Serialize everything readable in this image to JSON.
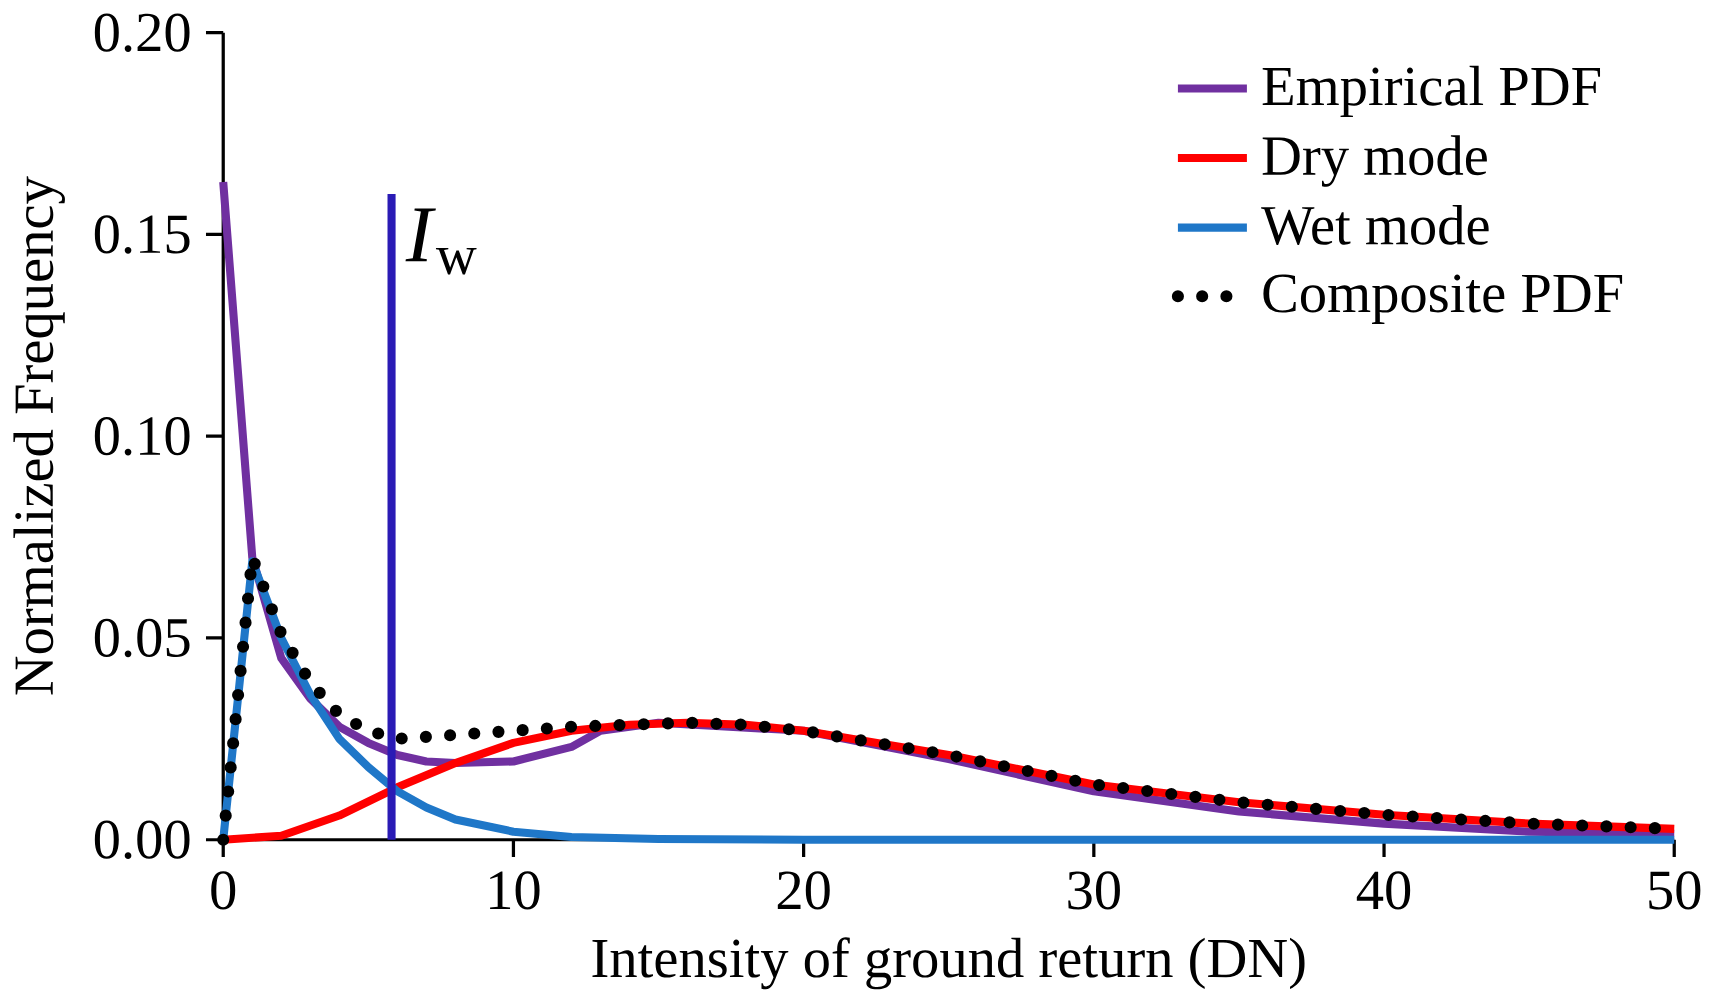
{
  "chart_data": {
    "type": "line",
    "xlabel": "Intensity of ground return (DN)",
    "ylabel": "Normalized Frequency",
    "xlim": [
      0,
      50
    ],
    "ylim": [
      0,
      0.2
    ],
    "xticks": [
      0,
      10,
      20,
      30,
      40,
      50
    ],
    "yticks": [
      {
        "value": 0,
        "label": "0.00"
      },
      {
        "value": 0.05,
        "label": "0.05"
      },
      {
        "value": 0.1,
        "label": "0.10"
      },
      {
        "value": 0.15,
        "label": "0.15"
      },
      {
        "value": 0.2,
        "label": "0.20"
      }
    ],
    "legend": "top right",
    "grid": false,
    "marker": "none",
    "series": [
      {
        "name": "Empirical PDF",
        "color": "#7030a0",
        "x": [
          0,
          1,
          2,
          3,
          4,
          5,
          6,
          7,
          8,
          10,
          12,
          13,
          15,
          20,
          25,
          30,
          35,
          40,
          45,
          50
        ],
        "values": [
          0.163,
          0.07,
          0.045,
          0.035,
          0.028,
          0.024,
          0.021,
          0.0194,
          0.019,
          0.0194,
          0.023,
          0.027,
          0.029,
          0.027,
          0.02,
          0.012,
          0.007,
          0.004,
          0.002,
          0.0015
        ]
      },
      {
        "name": "Dry mode",
        "color": "#ff0000",
        "x": [
          0,
          2,
          4,
          6,
          8,
          10,
          12,
          14,
          16,
          18,
          20,
          25,
          30,
          35,
          40,
          45,
          50
        ],
        "values": [
          0,
          0.001,
          0.006,
          0.013,
          0.019,
          0.024,
          0.027,
          0.0285,
          0.029,
          0.0285,
          0.027,
          0.021,
          0.0137,
          0.0093,
          0.0062,
          0.004,
          0.0027
        ]
      },
      {
        "name": "Wet mode",
        "color": "#1f77c8",
        "x": [
          0,
          1,
          2,
          3,
          4,
          5,
          6,
          7,
          8,
          10,
          12,
          15,
          20,
          50
        ],
        "values": [
          0,
          0.069,
          0.05,
          0.036,
          0.025,
          0.018,
          0.012,
          0.008,
          0.005,
          0.002,
          0.0007,
          0.0002,
          0,
          0
        ]
      },
      {
        "name": "Composite PDF",
        "color": "#000000",
        "line_style": "dotted",
        "x": [
          0,
          1,
          2,
          3,
          4,
          5,
          6,
          7,
          8,
          10,
          12,
          14,
          16,
          18,
          20,
          25,
          30,
          35,
          40,
          45,
          50
        ],
        "values": [
          0,
          0.07,
          0.051,
          0.039,
          0.031,
          0.027,
          0.025,
          0.0255,
          0.026,
          0.027,
          0.028,
          0.0285,
          0.029,
          0.0285,
          0.027,
          0.021,
          0.0137,
          0.0093,
          0.0062,
          0.004,
          0.0027
        ]
      }
    ],
    "ref_lines": [
      {
        "axis": "x",
        "value": 5.8,
        "label": "*I*$_{w}$",
        "color": "#2a1bb5"
      }
    ]
  }
}
